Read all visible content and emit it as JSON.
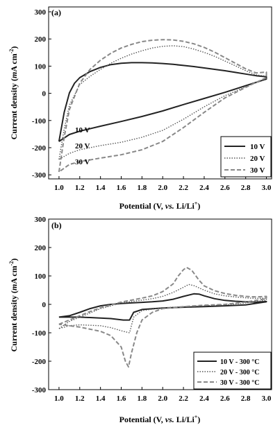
{
  "chart_data": [
    {
      "panel": "(a)",
      "type": "line",
      "ylabel": "Current density (mA cm-2)",
      "xlabel": "Potential (V, vs. Li/Li+)",
      "xlim": [
        0.9,
        3.05
      ],
      "ylim": [
        -320,
        300
      ],
      "xticks": [
        "1.0",
        "1.2",
        "1.4",
        "1.6",
        "1.8",
        "2.0",
        "2.2",
        "2.4",
        "2.6",
        "2.8",
        "3.0"
      ],
      "yticks": [
        "300",
        "200",
        "100",
        "0",
        "-100",
        "-200",
        "-300"
      ],
      "legend_position": "bottom-right",
      "annotations": [
        "10 V",
        "20 V",
        "30 V"
      ],
      "series": [
        {
          "name": "10 V",
          "style": "solid",
          "color": "#222222",
          "points": [
            [
              1.0,
              -185
            ],
            [
              1.05,
              -80
            ],
            [
              1.1,
              -10
            ],
            [
              1.15,
              25
            ],
            [
              1.2,
              45
            ],
            [
              1.3,
              67
            ],
            [
              1.4,
              82
            ],
            [
              1.5,
              92
            ],
            [
              1.6,
              97
            ],
            [
              1.7,
              99
            ],
            [
              1.8,
              99
            ],
            [
              1.9,
              98
            ],
            [
              2.0,
              96
            ],
            [
              2.1,
              93
            ],
            [
              2.2,
              89
            ],
            [
              2.3,
              85
            ],
            [
              2.4,
              80
            ],
            [
              2.5,
              75
            ],
            [
              2.6,
              70
            ],
            [
              2.7,
              64
            ],
            [
              2.8,
              58
            ],
            [
              2.9,
              52
            ],
            [
              3.0,
              48
            ],
            [
              3.0,
              40
            ],
            [
              2.9,
              28
            ],
            [
              2.8,
              16
            ],
            [
              2.6,
              -8
            ],
            [
              2.4,
              -30
            ],
            [
              2.2,
              -52
            ],
            [
              2.0,
              -75
            ],
            [
              1.8,
              -95
            ],
            [
              1.6,
              -113
            ],
            [
              1.4,
              -130
            ],
            [
              1.2,
              -148
            ],
            [
              1.1,
              -160
            ],
            [
              1.0,
              -185
            ]
          ]
        },
        {
          "name": "20 V",
          "style": "dotted",
          "color": "#555555",
          "points": [
            [
              1.0,
              -250
            ],
            [
              1.05,
              -140
            ],
            [
              1.1,
              -55
            ],
            [
              1.2,
              20
            ],
            [
              1.3,
              50
            ],
            [
              1.4,
              75
            ],
            [
              1.5,
              97
            ],
            [
              1.6,
              115
            ],
            [
              1.7,
              130
            ],
            [
              1.8,
              142
            ],
            [
              1.9,
              152
            ],
            [
              2.0,
              158
            ],
            [
              2.1,
              160
            ],
            [
              2.2,
              157
            ],
            [
              2.3,
              148
            ],
            [
              2.4,
              136
            ],
            [
              2.5,
              122
            ],
            [
              2.6,
              105
            ],
            [
              2.7,
              88
            ],
            [
              2.8,
              70
            ],
            [
              2.9,
              55
            ],
            [
              3.0,
              50
            ],
            [
              3.0,
              42
            ],
            [
              2.9,
              27
            ],
            [
              2.8,
              12
            ],
            [
              2.6,
              -20
            ],
            [
              2.4,
              -60
            ],
            [
              2.2,
              -105
            ],
            [
              2.0,
              -145
            ],
            [
              1.8,
              -170
            ],
            [
              1.6,
              -188
            ],
            [
              1.4,
              -200
            ],
            [
              1.2,
              -215
            ],
            [
              1.1,
              -228
            ],
            [
              1.0,
              -250
            ]
          ]
        },
        {
          "name": "30 V",
          "style": "dashed",
          "color": "#888888",
          "points": [
            [
              1.0,
              -295
            ],
            [
              1.05,
              -170
            ],
            [
              1.1,
              -70
            ],
            [
              1.2,
              25
            ],
            [
              1.3,
              75
            ],
            [
              1.4,
              108
            ],
            [
              1.5,
              133
            ],
            [
              1.6,
              152
            ],
            [
              1.7,
              165
            ],
            [
              1.8,
              175
            ],
            [
              1.9,
              180
            ],
            [
              2.0,
              182
            ],
            [
              2.1,
              181
            ],
            [
              2.2,
              176
            ],
            [
              2.3,
              167
            ],
            [
              2.4,
              154
            ],
            [
              2.5,
              137
            ],
            [
              2.6,
              117
            ],
            [
              2.7,
              97
            ],
            [
              2.8,
              77
            ],
            [
              2.9,
              62
            ],
            [
              3.0,
              65
            ],
            [
              3.0,
              45
            ],
            [
              2.9,
              28
            ],
            [
              2.8,
              10
            ],
            [
              2.6,
              -28
            ],
            [
              2.4,
              -80
            ],
            [
              2.2,
              -135
            ],
            [
              2.0,
              -185
            ],
            [
              1.8,
              -215
            ],
            [
              1.6,
              -233
            ],
            [
              1.4,
              -245
            ],
            [
              1.2,
              -258
            ],
            [
              1.1,
              -268
            ],
            [
              1.0,
              -295
            ]
          ]
        }
      ]
    },
    {
      "panel": "(b)",
      "type": "line",
      "ylabel": "Current density (mA cm-2)",
      "xlabel": "Potential (V, vs. Li/Li+)",
      "xlim": [
        0.9,
        3.05
      ],
      "ylim": [
        -300,
        300
      ],
      "xticks": [
        "1.0",
        "1.2",
        "1.4",
        "1.6",
        "1.8",
        "2.0",
        "2.2",
        "2.4",
        "2.6",
        "2.8",
        "3.0"
      ],
      "yticks": [
        "300",
        "200",
        "100",
        "0",
        "-100",
        "-200",
        "-300"
      ],
      "legend_position": "bottom-right",
      "series": [
        {
          "name": "10 V - 300 °C",
          "style": "solid",
          "color": "#222222",
          "points": [
            [
              1.0,
              -45
            ],
            [
              1.1,
              -40
            ],
            [
              1.2,
              -28
            ],
            [
              1.3,
              -15
            ],
            [
              1.4,
              -5
            ],
            [
              1.5,
              0
            ],
            [
              1.6,
              3
            ],
            [
              1.7,
              5
            ],
            [
              1.8,
              7
            ],
            [
              1.9,
              9
            ],
            [
              2.0,
              12
            ],
            [
              2.1,
              18
            ],
            [
              2.2,
              28
            ],
            [
              2.3,
              37
            ],
            [
              2.35,
              36
            ],
            [
              2.4,
              30
            ],
            [
              2.5,
              20
            ],
            [
              2.6,
              14
            ],
            [
              2.7,
              11
            ],
            [
              2.8,
              9
            ],
            [
              2.9,
              8
            ],
            [
              3.0,
              10
            ],
            [
              3.0,
              9
            ],
            [
              2.8,
              -2
            ],
            [
              2.6,
              -5
            ],
            [
              2.4,
              -8
            ],
            [
              2.2,
              -10
            ],
            [
              2.0,
              -13
            ],
            [
              1.8,
              -18
            ],
            [
              1.72,
              -28
            ],
            [
              1.68,
              -55
            ],
            [
              1.62,
              -55
            ],
            [
              1.5,
              -50
            ],
            [
              1.4,
              -48
            ],
            [
              1.2,
              -45
            ],
            [
              1.1,
              -45
            ],
            [
              1.0,
              -45
            ]
          ]
        },
        {
          "name": "20 V - 300 °C",
          "style": "dotted",
          "color": "#555555",
          "points": [
            [
              1.0,
              -85
            ],
            [
              1.1,
              -60
            ],
            [
              1.2,
              -45
            ],
            [
              1.3,
              -30
            ],
            [
              1.4,
              -15
            ],
            [
              1.5,
              -5
            ],
            [
              1.6,
              5
            ],
            [
              1.7,
              10
            ],
            [
              1.8,
              15
            ],
            [
              1.9,
              20
            ],
            [
              2.0,
              28
            ],
            [
              2.1,
              42
            ],
            [
              2.2,
              60
            ],
            [
              2.25,
              70
            ],
            [
              2.3,
              66
            ],
            [
              2.4,
              50
            ],
            [
              2.5,
              37
            ],
            [
              2.6,
              30
            ],
            [
              2.7,
              26
            ],
            [
              2.8,
              23
            ],
            [
              2.9,
              21
            ],
            [
              3.0,
              22
            ],
            [
              3.0,
              15
            ],
            [
              2.8,
              5
            ],
            [
              2.6,
              -2
            ],
            [
              2.4,
              -5
            ],
            [
              2.2,
              -8
            ],
            [
              2.0,
              -12
            ],
            [
              1.8,
              -22
            ],
            [
              1.72,
              -45
            ],
            [
              1.68,
              -100
            ],
            [
              1.62,
              -95
            ],
            [
              1.5,
              -82
            ],
            [
              1.4,
              -75
            ],
            [
              1.2,
              -72
            ],
            [
              1.1,
              -75
            ],
            [
              1.0,
              -85
            ]
          ]
        },
        {
          "name": "30 V - 300 °C",
          "style": "dashed",
          "color": "#888888",
          "points": [
            [
              1.0,
              -70
            ],
            [
              1.1,
              -55
            ],
            [
              1.2,
              -40
            ],
            [
              1.3,
              -25
            ],
            [
              1.4,
              -12
            ],
            [
              1.5,
              -2
            ],
            [
              1.6,
              8
            ],
            [
              1.7,
              15
            ],
            [
              1.8,
              22
            ],
            [
              1.9,
              30
            ],
            [
              2.0,
              45
            ],
            [
              2.1,
              72
            ],
            [
              2.15,
              100
            ],
            [
              2.2,
              122
            ],
            [
              2.23,
              130
            ],
            [
              2.28,
              120
            ],
            [
              2.35,
              85
            ],
            [
              2.4,
              65
            ],
            [
              2.5,
              48
            ],
            [
              2.6,
              38
            ],
            [
              2.7,
              32
            ],
            [
              2.8,
              28
            ],
            [
              2.9,
              26
            ],
            [
              3.0,
              28
            ],
            [
              3.0,
              20
            ],
            [
              2.8,
              8
            ],
            [
              2.6,
              0
            ],
            [
              2.4,
              -3
            ],
            [
              2.2,
              -8
            ],
            [
              2.0,
              -15
            ],
            [
              1.9,
              -28
            ],
            [
              1.8,
              -55
            ],
            [
              1.75,
              -100
            ],
            [
              1.7,
              -170
            ],
            [
              1.67,
              -220
            ],
            [
              1.64,
              -200
            ],
            [
              1.6,
              -150
            ],
            [
              1.5,
              -110
            ],
            [
              1.4,
              -95
            ],
            [
              1.2,
              -80
            ],
            [
              1.1,
              -75
            ],
            [
              1.0,
              -70
            ]
          ]
        }
      ]
    }
  ]
}
